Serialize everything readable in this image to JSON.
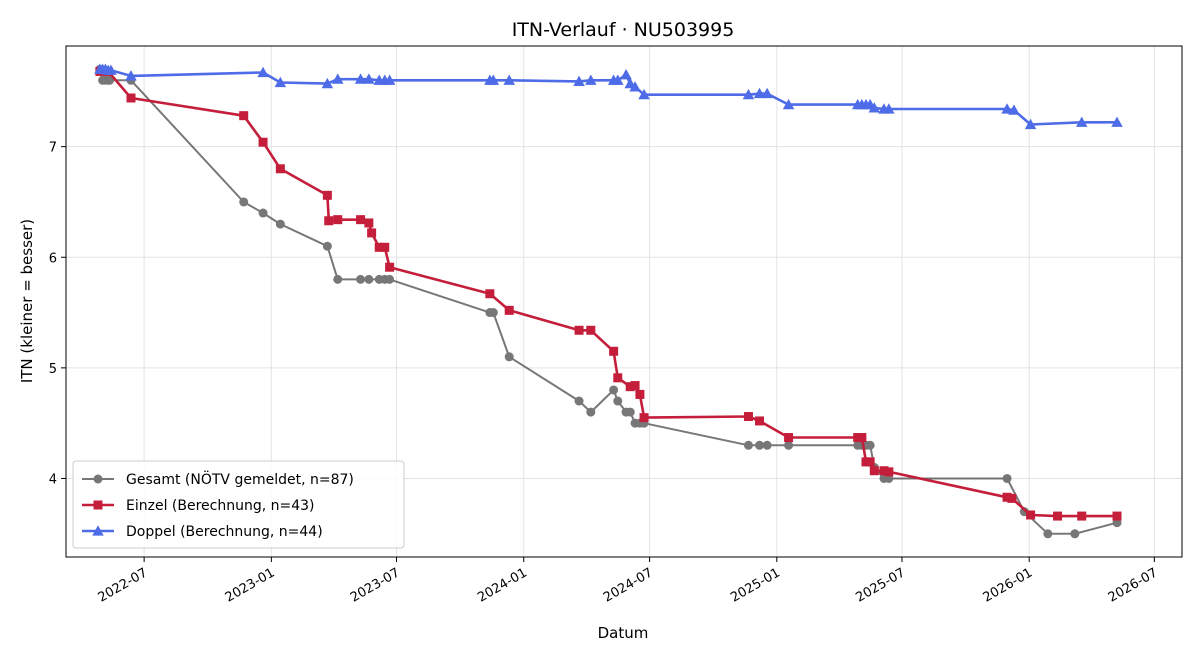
{
  "chart_data": {
    "type": "line",
    "title": "ITN-Verlauf · NU503995",
    "xlabel": "Datum",
    "ylabel": "ITN  (kleiner = besser)",
    "x_axis": "date",
    "xlim": [
      "2022-03-10",
      "2026-08-10"
    ],
    "ylim": [
      3.29,
      7.91
    ],
    "xticks": [
      "2022-07-01",
      "2023-01-01",
      "2023-07-01",
      "2024-01-01",
      "2024-07-01",
      "2025-01-01",
      "2025-07-01",
      "2026-01-01",
      "2026-07-01"
    ],
    "xtick_labels": [
      "2022-07",
      "2023-01",
      "2023-07",
      "2024-01",
      "2024-07",
      "2025-01",
      "2025-07",
      "2026-01",
      "2026-07"
    ],
    "yticks": [
      4,
      5,
      6,
      7
    ],
    "ytick_labels": [
      "4",
      "5",
      "6",
      "7"
    ],
    "grid": true,
    "legend_position": "lower-left",
    "series": [
      {
        "name": "Gesamt (NÖTV gemeldet, n=87)",
        "color": "#444444",
        "marker": "circle",
        "points": [
          [
            "2022-04-28",
            7.7
          ],
          [
            "2022-05-02",
            7.6
          ],
          [
            "2022-05-06",
            7.6
          ],
          [
            "2022-05-10",
            7.6
          ],
          [
            "2022-05-12",
            7.6
          ],
          [
            "2022-06-12",
            7.6
          ],
          [
            "2022-11-22",
            6.5
          ],
          [
            "2022-12-20",
            6.4
          ],
          [
            "2023-01-14",
            6.3
          ],
          [
            "2023-03-23",
            6.1
          ],
          [
            "2023-04-07",
            5.8
          ],
          [
            "2023-05-10",
            5.8
          ],
          [
            "2023-05-22",
            5.8
          ],
          [
            "2023-06-06",
            5.8
          ],
          [
            "2023-06-14",
            5.8
          ],
          [
            "2023-06-21",
            5.8
          ],
          [
            "2023-11-13",
            5.5
          ],
          [
            "2023-11-18",
            5.5
          ],
          [
            "2023-12-11",
            5.1
          ],
          [
            "2024-03-21",
            4.7
          ],
          [
            "2024-04-07",
            4.6
          ],
          [
            "2024-05-10",
            4.8
          ],
          [
            "2024-05-16",
            4.7
          ],
          [
            "2024-05-28",
            4.6
          ],
          [
            "2024-06-03",
            4.6
          ],
          [
            "2024-06-10",
            4.5
          ],
          [
            "2024-06-17",
            4.5
          ],
          [
            "2024-06-23",
            4.5
          ],
          [
            "2024-11-21",
            4.3
          ],
          [
            "2024-12-07",
            4.3
          ],
          [
            "2024-12-18",
            4.3
          ],
          [
            "2025-01-18",
            4.3
          ],
          [
            "2025-04-28",
            4.3
          ],
          [
            "2025-05-04",
            4.3
          ],
          [
            "2025-05-10",
            4.3
          ],
          [
            "2025-05-16",
            4.3
          ],
          [
            "2025-05-22",
            4.1
          ],
          [
            "2025-06-05",
            4.0
          ],
          [
            "2025-06-12",
            4.0
          ],
          [
            "2025-11-30",
            4.0
          ],
          [
            "2025-12-25",
            3.7
          ],
          [
            "2026-01-28",
            3.5
          ],
          [
            "2026-03-08",
            3.5
          ],
          [
            "2026-05-08",
            3.6
          ]
        ]
      },
      {
        "name": "Einzel (Berechnung, n=43)",
        "color": "#c41e3a",
        "marker": "square",
        "points": [
          [
            "2022-04-28",
            7.68
          ],
          [
            "2022-05-10",
            7.68
          ],
          [
            "2022-06-12",
            7.44
          ],
          [
            "2022-11-22",
            7.28
          ],
          [
            "2022-12-20",
            7.04
          ],
          [
            "2023-01-14",
            6.8
          ],
          [
            "2023-03-23",
            6.56
          ],
          [
            "2023-03-25",
            6.33
          ],
          [
            "2023-04-07",
            6.34
          ],
          [
            "2023-05-10",
            6.34
          ],
          [
            "2023-05-22",
            6.31
          ],
          [
            "2023-05-26",
            6.22
          ],
          [
            "2023-06-06",
            6.09
          ],
          [
            "2023-06-14",
            6.09
          ],
          [
            "2023-06-21",
            5.91
          ],
          [
            "2023-11-13",
            5.67
          ],
          [
            "2023-12-11",
            5.52
          ],
          [
            "2024-03-21",
            5.34
          ],
          [
            "2024-04-07",
            5.34
          ],
          [
            "2024-05-10",
            5.15
          ],
          [
            "2024-05-16",
            4.91
          ],
          [
            "2024-06-03",
            4.83
          ],
          [
            "2024-06-10",
            4.84
          ],
          [
            "2024-06-17",
            4.76
          ],
          [
            "2024-06-23",
            4.55
          ],
          [
            "2024-11-21",
            4.56
          ],
          [
            "2024-12-07",
            4.52
          ],
          [
            "2025-01-18",
            4.37
          ],
          [
            "2025-04-28",
            4.37
          ],
          [
            "2025-05-04",
            4.37
          ],
          [
            "2025-05-10",
            4.15
          ],
          [
            "2025-05-16",
            4.15
          ],
          [
            "2025-05-22",
            4.07
          ],
          [
            "2025-06-05",
            4.07
          ],
          [
            "2025-06-12",
            4.06
          ],
          [
            "2025-11-30",
            3.83
          ],
          [
            "2025-12-07",
            3.82
          ],
          [
            "2026-01-03",
            3.67
          ],
          [
            "2026-02-11",
            3.66
          ],
          [
            "2026-03-18",
            3.66
          ],
          [
            "2026-05-08",
            3.66
          ]
        ]
      },
      {
        "name": "Doppel (Berechnung, n=44)",
        "color": "#4f6ce8",
        "marker": "triangle",
        "points": [
          [
            "2022-04-28",
            7.7
          ],
          [
            "2022-05-02",
            7.7
          ],
          [
            "2022-05-06",
            7.7
          ],
          [
            "2022-05-10",
            7.69
          ],
          [
            "2022-05-14",
            7.69
          ],
          [
            "2022-06-12",
            7.64
          ],
          [
            "2022-12-20",
            7.67
          ],
          [
            "2023-01-14",
            7.58
          ],
          [
            "2023-03-23",
            7.57
          ],
          [
            "2023-04-07",
            7.61
          ],
          [
            "2023-05-10",
            7.61
          ],
          [
            "2023-05-22",
            7.61
          ],
          [
            "2023-06-06",
            7.6
          ],
          [
            "2023-06-14",
            7.6
          ],
          [
            "2023-06-21",
            7.6
          ],
          [
            "2023-11-13",
            7.6
          ],
          [
            "2023-11-18",
            7.6
          ],
          [
            "2023-12-11",
            7.6
          ],
          [
            "2024-03-21",
            7.59
          ],
          [
            "2024-04-07",
            7.6
          ],
          [
            "2024-05-10",
            7.6
          ],
          [
            "2024-05-16",
            7.6
          ],
          [
            "2024-05-28",
            7.65
          ],
          [
            "2024-06-03",
            7.57
          ],
          [
            "2024-06-10",
            7.54
          ],
          [
            "2024-06-23",
            7.47
          ],
          [
            "2024-11-21",
            7.47
          ],
          [
            "2024-12-07",
            7.48
          ],
          [
            "2024-12-18",
            7.48
          ],
          [
            "2025-01-18",
            7.38
          ],
          [
            "2025-04-28",
            7.38
          ],
          [
            "2025-05-04",
            7.38
          ],
          [
            "2025-05-10",
            7.38
          ],
          [
            "2025-05-16",
            7.38
          ],
          [
            "2025-05-22",
            7.35
          ],
          [
            "2025-06-05",
            7.34
          ],
          [
            "2025-06-12",
            7.34
          ],
          [
            "2025-11-30",
            7.34
          ],
          [
            "2025-12-10",
            7.33
          ],
          [
            "2026-01-03",
            7.2
          ],
          [
            "2026-03-18",
            7.22
          ],
          [
            "2026-05-08",
            7.22
          ]
        ]
      }
    ]
  }
}
